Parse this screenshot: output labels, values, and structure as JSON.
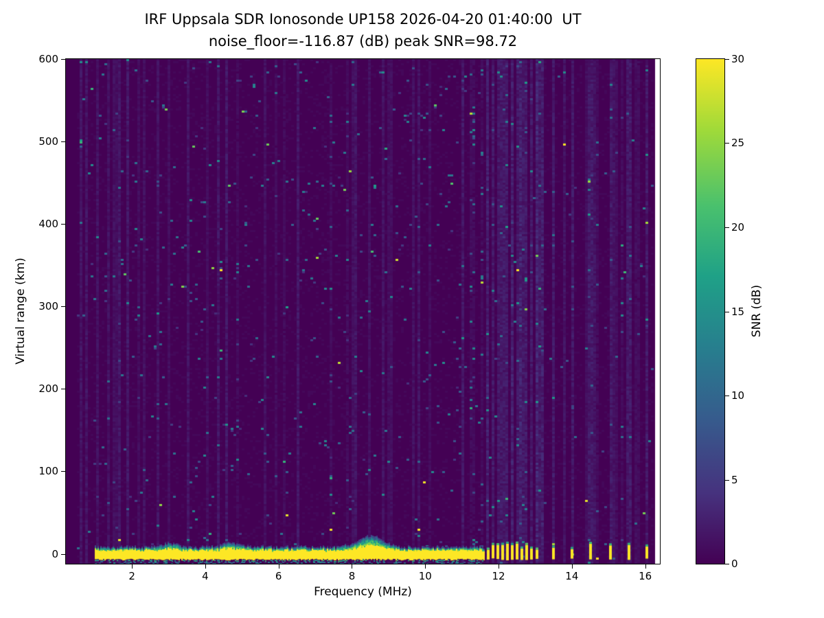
{
  "chart_data": {
    "type": "heatmap",
    "title": "IRF Uppsala SDR Ionosonde UP158 2026-04-20 01:40:00  UT",
    "subtitle": "noise_floor=-116.87 (dB) peak SNR=98.72",
    "station": "UP158",
    "timestamp_ut": "2026-04-20 01:40:00",
    "noise_floor_db": -116.87,
    "peak_snr_db": 98.72,
    "axes": {
      "x": {
        "label": "Frequency (MHz)",
        "min": 0.2,
        "max": 16.4,
        "ticks": [
          2,
          4,
          6,
          8,
          10,
          12,
          14,
          16
        ]
      },
      "y": {
        "label": "Virtual range (km)",
        "min": -12,
        "max": 600,
        "ticks": [
          0,
          100,
          200,
          300,
          400,
          500,
          600
        ]
      }
    },
    "colorbar": {
      "label": "SNR (dB)",
      "min": 0,
      "max": 30,
      "ticks": [
        0,
        5,
        10,
        15,
        20,
        25,
        30
      ],
      "colormap": "viridis",
      "stops": [
        {
          "pos": 0.0,
          "color": "#440154"
        },
        {
          "pos": 0.14,
          "color": "#46327e"
        },
        {
          "pos": 0.29,
          "color": "#365c8d"
        },
        {
          "pos": 0.43,
          "color": "#277f8e"
        },
        {
          "pos": 0.57,
          "color": "#1fa187"
        },
        {
          "pos": 0.71,
          "color": "#4ac16d"
        },
        {
          "pos": 0.86,
          "color": "#a0da39"
        },
        {
          "pos": 1.0,
          "color": "#fde725"
        }
      ]
    },
    "data_start_mhz": 0.5,
    "data_end_mhz": 16.25,
    "ground_echo": {
      "range_km": 0,
      "freq_start_mhz": 1.0,
      "freq_end_mhz": 11.62,
      "halfwidth_km": 5,
      "lower_km": -7,
      "bumps": [
        {
          "freq_mhz": 3.0,
          "extra_km": 2,
          "sigma_mhz": 0.3
        },
        {
          "freq_mhz": 4.7,
          "extra_km": 2,
          "sigma_mhz": 0.35
        },
        {
          "freq_mhz": 8.5,
          "extra_km": 6,
          "sigma_mhz": 0.45
        }
      ]
    },
    "sub_echo": {
      "range_km": -10.5,
      "freq_start_mhz": 1.0,
      "freq_end_mhz": 11.5
    },
    "pulse_frequencies_mhz": [
      11.72,
      11.85,
      11.98,
      12.11,
      12.24,
      12.37,
      12.5,
      12.63,
      12.77,
      12.9,
      13.04,
      13.5,
      14.0,
      14.5,
      15.05,
      15.55,
      16.05
    ],
    "noise_stripe_frequencies_mhz": [
      11.72,
      11.85,
      11.98,
      12.11,
      12.24,
      12.37,
      12.5,
      12.63,
      12.77,
      12.9,
      13.04,
      13.2,
      13.5,
      14.0,
      14.5,
      15.05,
      15.55,
      16.05
    ],
    "speckle": {
      "seed": 42,
      "density_below_11mhz": 0.013,
      "density_above_11mhz": 0.005,
      "typical_snr_db": [
        4,
        16
      ]
    }
  }
}
